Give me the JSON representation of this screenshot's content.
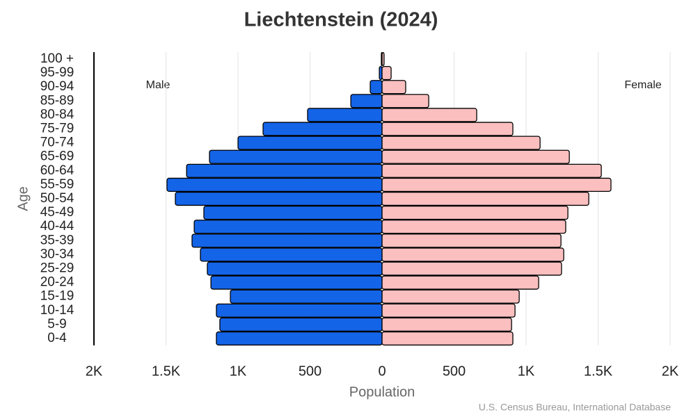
{
  "chart_data": {
    "type": "pyramid",
    "title": "Liechtenstein (2024)",
    "x_label": "Population",
    "y_label": "Age",
    "source": "U.S. Census Bureau, International Database",
    "categories": [
      "0-4",
      "5-9",
      "10-14",
      "15-19",
      "20-24",
      "25-29",
      "30-34",
      "35-39",
      "40-44",
      "45-49",
      "50-54",
      "55-59",
      "60-64",
      "65-69",
      "70-74",
      "75-79",
      "80-84",
      "85-89",
      "90-94",
      "95-99",
      "100 +"
    ],
    "series": [
      {
        "name": "Male",
        "color": "#1464e8",
        "values": [
          -1150,
          -1126,
          -1150,
          -1053,
          -1188,
          -1213,
          -1261,
          -1319,
          -1304,
          -1237,
          -1435,
          -1493,
          -1357,
          -1198,
          -1000,
          -826,
          -517,
          -217,
          -82,
          -19,
          -5
        ]
      },
      {
        "name": "Female",
        "color": "#fbbfbf",
        "values": [
          908,
          899,
          923,
          952,
          1087,
          1246,
          1261,
          1242,
          1275,
          1290,
          1435,
          1589,
          1522,
          1300,
          1097,
          908,
          657,
          324,
          164,
          63,
          14
        ]
      }
    ],
    "xlim": [
      -2000,
      2000
    ],
    "xticks": [
      {
        "value": -2000,
        "label": "2K"
      },
      {
        "value": -1500,
        "label": "1.5K"
      },
      {
        "value": -1000,
        "label": "1K"
      },
      {
        "value": -500,
        "label": "500"
      },
      0,
      500,
      {
        "value": 1000,
        "label": "1K"
      },
      {
        "value": 1500,
        "label": "1.5K"
      },
      {
        "value": 2000,
        "label": "2K"
      }
    ],
    "grid": true
  }
}
